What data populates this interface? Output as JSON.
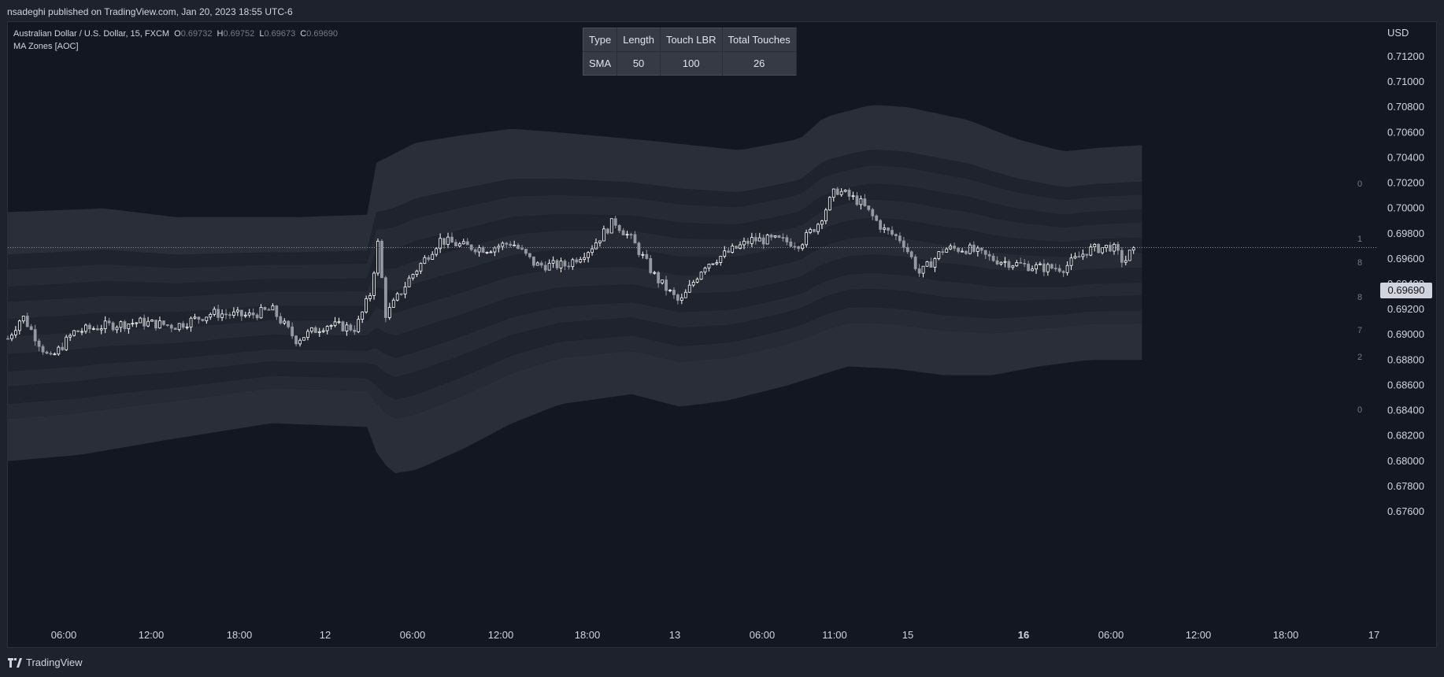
{
  "header": {
    "published_by": "nsadeghi published on TradingView.com, Jan 20, 2023 18:55 UTC-6"
  },
  "footer": {
    "brand": "TradingView"
  },
  "legend": {
    "symbol": "Australian Dollar / U.S. Dollar, 15, FXCM",
    "open_label": "O",
    "open": "0.69732",
    "high_label": "H",
    "high": "0.69752",
    "low_label": "L",
    "low": "0.69673",
    "close_label": "C",
    "close": "0.69690",
    "indicator": "MA Zones [AOC]"
  },
  "info_table": {
    "headers": [
      "Type",
      "Length",
      "Touch LBR",
      "Total Touches"
    ],
    "row": [
      "SMA",
      "50",
      "100",
      "26"
    ]
  },
  "current_price_label": "0.69690",
  "colors": {
    "background": "#131722",
    "outer_band": "#2a2e39",
    "inner_band": "#1f232e",
    "candle_up": "#ffffff",
    "candle_down": "#9598a1",
    "text": "#d1d4dc"
  },
  "chart_data": {
    "type": "candlestick",
    "currency": "USD",
    "y_ticks": [
      "0.71200",
      "0.71000",
      "0.70800",
      "0.70600",
      "0.70400",
      "0.70200",
      "0.70000",
      "0.69800",
      "0.69600",
      "0.69400",
      "0.69200",
      "0.69000",
      "0.68800",
      "0.68600",
      "0.68400",
      "0.68200",
      "0.68000",
      "0.67800",
      "0.67600"
    ],
    "ylim": [
      0.675,
      0.713
    ],
    "x_ticks": [
      "06:00",
      "12:00",
      "18:00",
      "12",
      "06:00",
      "12:00",
      "18:00",
      "13",
      "06:00",
      "11:00",
      "15",
      "16",
      "06:00",
      "12:00",
      "18:00",
      "17"
    ],
    "zone_labels": [
      "0",
      "1",
      "8",
      "8",
      "7",
      "2",
      "0"
    ],
    "close_path": [
      {
        "x": 0.0,
        "y": 0.6897
      },
      {
        "x": 1.2,
        "y": 0.6915
      },
      {
        "x": 3.5,
        "y": 0.688
      },
      {
        "x": 5.5,
        "y": 0.6902
      },
      {
        "x": 8.0,
        "y": 0.6907
      },
      {
        "x": 11.0,
        "y": 0.691
      },
      {
        "x": 14.0,
        "y": 0.6907
      },
      {
        "x": 17.0,
        "y": 0.6917
      },
      {
        "x": 20.0,
        "y": 0.6915
      },
      {
        "x": 22.0,
        "y": 0.692
      },
      {
        "x": 24.0,
        "y": 0.6896
      },
      {
        "x": 26.5,
        "y": 0.6908
      },
      {
        "x": 29.0,
        "y": 0.6905
      },
      {
        "x": 30.3,
        "y": 0.6935
      },
      {
        "x": 30.8,
        "y": 0.6975
      },
      {
        "x": 31.5,
        "y": 0.6915
      },
      {
        "x": 33.5,
        "y": 0.6945
      },
      {
        "x": 36.0,
        "y": 0.6975
      },
      {
        "x": 38.0,
        "y": 0.697
      },
      {
        "x": 40.0,
        "y": 0.6968
      },
      {
        "x": 42.0,
        "y": 0.6973
      },
      {
        "x": 44.0,
        "y": 0.6955
      },
      {
        "x": 46.5,
        "y": 0.6955
      },
      {
        "x": 48.5,
        "y": 0.6968
      },
      {
        "x": 50.5,
        "y": 0.699
      },
      {
        "x": 52.0,
        "y": 0.6975
      },
      {
        "x": 54.0,
        "y": 0.6945
      },
      {
        "x": 56.0,
        "y": 0.6925
      },
      {
        "x": 58.0,
        "y": 0.6955
      },
      {
        "x": 60.0,
        "y": 0.6965
      },
      {
        "x": 62.0,
        "y": 0.6975
      },
      {
        "x": 64.0,
        "y": 0.6975
      },
      {
        "x": 66.0,
        "y": 0.6972
      },
      {
        "x": 67.5,
        "y": 0.6988
      },
      {
        "x": 69.0,
        "y": 0.7015
      },
      {
        "x": 71.0,
        "y": 0.7005
      },
      {
        "x": 73.0,
        "y": 0.6983
      },
      {
        "x": 74.5,
        "y": 0.6975
      },
      {
        "x": 76.0,
        "y": 0.6948
      },
      {
        "x": 78.0,
        "y": 0.6968
      },
      {
        "x": 80.0,
        "y": 0.6968
      },
      {
        "x": 82.0,
        "y": 0.696
      },
      {
        "x": 84.0,
        "y": 0.6956
      },
      {
        "x": 86.0,
        "y": 0.6953
      },
      {
        "x": 88.0,
        "y": 0.6953
      },
      {
        "x": 90.0,
        "y": 0.6967
      },
      {
        "x": 92.0,
        "y": 0.697
      },
      {
        "x": 93.0,
        "y": 0.6957
      },
      {
        "x": 93.8,
        "y": 0.6969
      }
    ],
    "x_range": [
      0,
      95
    ],
    "outer_upper": [
      [
        0,
        0.6997
      ],
      [
        8,
        0.7
      ],
      [
        14,
        0.6993
      ],
      [
        24,
        0.6993
      ],
      [
        30,
        0.6995
      ],
      [
        30.5,
        0.7035
      ],
      [
        34,
        0.7052
      ],
      [
        38,
        0.7058
      ],
      [
        42,
        0.7063
      ],
      [
        46,
        0.706
      ],
      [
        53,
        0.7054
      ],
      [
        57,
        0.705
      ],
      [
        61,
        0.7046
      ],
      [
        66,
        0.7055
      ],
      [
        68,
        0.7072
      ],
      [
        72,
        0.7082
      ],
      [
        75,
        0.708
      ],
      [
        80,
        0.707
      ],
      [
        84,
        0.7055
      ],
      [
        88,
        0.7045
      ],
      [
        91,
        0.7048
      ],
      [
        94.5,
        0.705
      ]
    ],
    "outer_lower": [
      [
        0,
        0.68
      ],
      [
        6,
        0.6805
      ],
      [
        14,
        0.6818
      ],
      [
        22,
        0.683
      ],
      [
        30,
        0.6827
      ],
      [
        30.5,
        0.681
      ],
      [
        32,
        0.679
      ],
      [
        34,
        0.6793
      ],
      [
        38,
        0.681
      ],
      [
        42,
        0.683
      ],
      [
        46,
        0.6845
      ],
      [
        52,
        0.6853
      ],
      [
        56,
        0.6843
      ],
      [
        60,
        0.6848
      ],
      [
        65,
        0.686
      ],
      [
        70,
        0.6875
      ],
      [
        74,
        0.6873
      ],
      [
        78,
        0.6868
      ],
      [
        82,
        0.6868
      ],
      [
        86,
        0.6875
      ],
      [
        90,
        0.688
      ],
      [
        94.5,
        0.688
      ]
    ]
  }
}
